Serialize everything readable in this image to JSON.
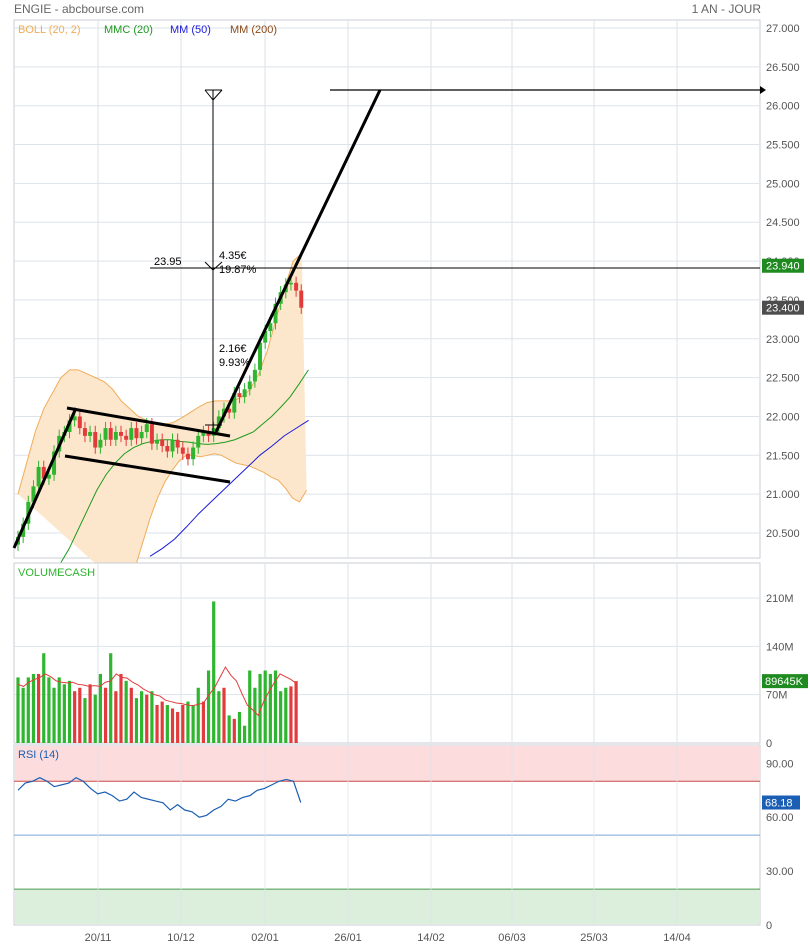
{
  "header": {
    "title": "ENGIE - abcbourse.com",
    "period": "1 AN - JOUR"
  },
  "legend": [
    {
      "label": "BOLL (20, 2)",
      "color": "#f0ac5a"
    },
    {
      "label": "MMC (20)",
      "color": "#1d9a1d"
    },
    {
      "label": "MM (50)",
      "color": "#1a1adb"
    },
    {
      "label": "MM (200)",
      "color": "#8a4b1a"
    }
  ],
  "colors": {
    "up": "#2fb52f",
    "down": "#e23b3b",
    "grid": "#dde3ea",
    "boll_fill": "#fde7cc",
    "rsi_high": "#fcdcdc",
    "rsi_low": "#dcefdc"
  },
  "chart_data": [
    {
      "type": "candlestick",
      "panel": "price",
      "x_ticks": [
        "20/11",
        "10/12",
        "02/01",
        "26/01",
        "14/02",
        "06/03",
        "25/03",
        "14/04"
      ],
      "y_ticks": [
        "27.000",
        "26.500",
        "26.000",
        "25.500",
        "25.000",
        "24.500",
        "24.000",
        "23.500",
        "23.000",
        "22.500",
        "22.000",
        "21.500",
        "21.000",
        "20.500"
      ],
      "ylim": [
        20.2,
        27.1
      ],
      "price_tags": [
        {
          "value": "23.940",
          "y": 23.94,
          "color": "#1f8a1f"
        },
        {
          "value": "23.400",
          "y": 23.4,
          "color": "#4d4d4d"
        }
      ],
      "closes": [
        20.45,
        20.62,
        20.9,
        21.1,
        21.35,
        21.2,
        21.25,
        21.55,
        21.75,
        21.8,
        21.95,
        22.0,
        21.85,
        21.75,
        21.8,
        21.6,
        21.7,
        21.85,
        21.7,
        21.8,
        21.75,
        21.7,
        21.85,
        21.72,
        21.8,
        21.9,
        21.65,
        21.7,
        21.62,
        21.55,
        21.7,
        21.6,
        21.52,
        21.45,
        21.6,
        21.75,
        21.8,
        21.75,
        21.85,
        22.0,
        22.1,
        22.05,
        22.3,
        22.25,
        22.35,
        22.45,
        22.6,
        22.95,
        23.1,
        23.2,
        23.45,
        23.6,
        23.7,
        23.72,
        23.62,
        23.4
      ],
      "boll_upper": [
        21.0,
        21.4,
        21.8,
        22.1,
        22.3,
        22.5,
        22.6,
        22.6,
        22.55,
        22.5,
        22.45,
        22.35,
        22.2,
        22.1,
        22.0,
        21.95,
        21.9,
        21.9,
        21.92,
        21.98,
        22.05,
        22.12,
        22.18,
        22.2,
        22.2,
        22.2,
        22.25,
        22.35,
        22.55,
        22.85,
        23.25,
        23.65,
        24.0,
        24.1
      ],
      "boll_lower": [
        19.8,
        19.9,
        20.1,
        20.4,
        20.7,
        20.95,
        21.15,
        21.3,
        21.42,
        21.5,
        21.5,
        21.48,
        21.5,
        21.52,
        21.5,
        21.45,
        21.4,
        21.38,
        21.36,
        21.32,
        21.28,
        21.22,
        21.18,
        21.08,
        20.95,
        20.9,
        21.05
      ],
      "mmc20": [
        20.1,
        20.3,
        20.55,
        20.8,
        21.05,
        21.25,
        21.4,
        21.52,
        21.6,
        21.65,
        21.68,
        21.7,
        21.7,
        21.68,
        21.67,
        21.65,
        21.64,
        21.65,
        21.67,
        21.7,
        21.75,
        21.8,
        21.9,
        22.0,
        22.12,
        22.25,
        22.42,
        22.6
      ],
      "mm50": [
        20.2,
        20.3,
        20.42,
        20.58,
        20.75,
        20.9,
        21.05,
        21.2,
        21.35,
        21.5,
        21.62,
        21.75,
        21.85,
        21.95
      ]
    },
    {
      "type": "bar",
      "panel": "volume",
      "title": "VOLUMECASH",
      "y_ticks": [
        "210M",
        "140M",
        "70M",
        "0"
      ],
      "ylim": [
        0,
        230
      ],
      "tag": {
        "value": "89645K",
        "color": "#1f8a1f"
      },
      "values": [
        95,
        80,
        95,
        100,
        100,
        130,
        95,
        80,
        95,
        85,
        90,
        75,
        80,
        65,
        85,
        70,
        100,
        80,
        130,
        75,
        100,
        90,
        80,
        65,
        75,
        70,
        75,
        55,
        60,
        55,
        50,
        45,
        55,
        60,
        55,
        80,
        60,
        105,
        205,
        75,
        80,
        40,
        35,
        45,
        25,
        105,
        80,
        100,
        105,
        100,
        105,
        75,
        80,
        82,
        89.6
      ],
      "avg": [
        85,
        82,
        88,
        92,
        95,
        100,
        96,
        90,
        88,
        87,
        88,
        85,
        84,
        82,
        83,
        82,
        88,
        90,
        100,
        95,
        94,
        88,
        84,
        78,
        74,
        70,
        68,
        62,
        60,
        58,
        57,
        55,
        54,
        56,
        58,
        70,
        80,
        95,
        110,
        98,
        90,
        72,
        55,
        48,
        40,
        60,
        75,
        88,
        100,
        96,
        92,
        86
      ]
    },
    {
      "type": "line",
      "panel": "rsi",
      "title": "RSI (14)",
      "y_ticks": [
        "90.00",
        "60.00",
        "30.00",
        "0"
      ],
      "ylim": [
        0,
        100
      ],
      "bands": {
        "high": 80,
        "low": 20,
        "mid": 50
      },
      "tag": {
        "value": "68.18",
        "color": "#1a5fb4"
      },
      "values": [
        75,
        79,
        80,
        82,
        80,
        77,
        78,
        79,
        82,
        80,
        76,
        73,
        74,
        72,
        69,
        70,
        74,
        71,
        70,
        69,
        68,
        64,
        67,
        64,
        63,
        60,
        61,
        64,
        66,
        70,
        69,
        71,
        72,
        75,
        76,
        78,
        80,
        81,
        80,
        68.18
      ]
    }
  ],
  "annotations": {
    "label_2395": "23.95",
    "label_435": "4.35€",
    "label_1987": "19.87%",
    "label_216": "2.16€",
    "label_993": "9.93%"
  }
}
